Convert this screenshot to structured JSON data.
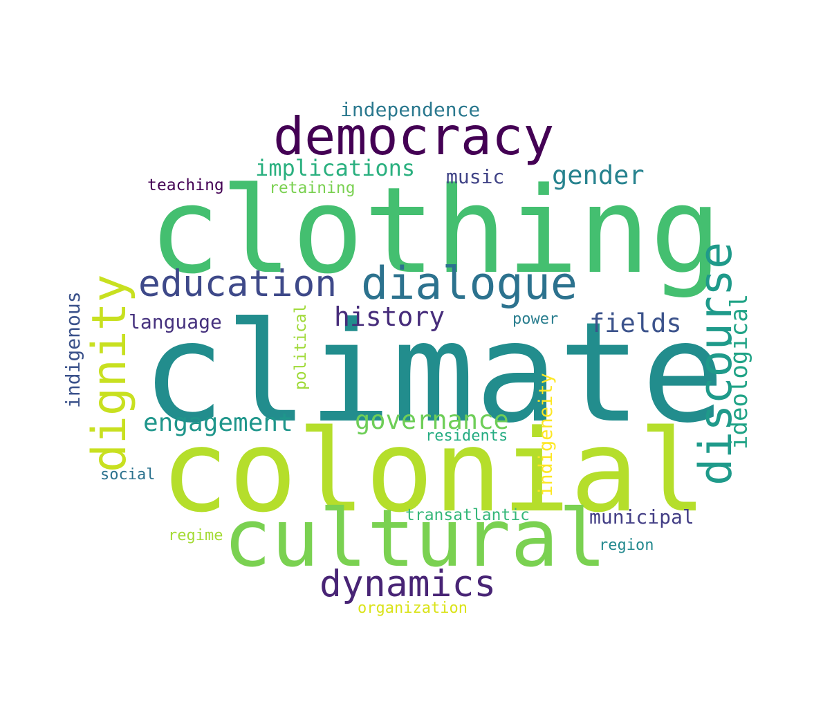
{
  "words": [
    {
      "text": "climate",
      "color": "#228d8d"
    },
    {
      "text": "clothing",
      "color": "#44bf70"
    },
    {
      "text": "colonial",
      "color": "#b5de2b"
    },
    {
      "text": "democracy",
      "color": "#440154"
    },
    {
      "text": "cultural",
      "color": "#7ad151"
    },
    {
      "text": "dialogue",
      "color": "#2c728e"
    },
    {
      "text": "discourse",
      "color": "#1f9a8a"
    },
    {
      "text": "dignity",
      "color": "#c8e020"
    },
    {
      "text": "education",
      "color": "#3e4989"
    },
    {
      "text": "dynamics",
      "color": "#482475"
    },
    {
      "text": "governance",
      "color": "#6ece58"
    },
    {
      "text": "engagement",
      "color": "#1f968b"
    },
    {
      "text": "history",
      "color": "#472d7b"
    },
    {
      "text": "implications",
      "color": "#2ab07f"
    },
    {
      "text": "gender",
      "color": "#26828e"
    },
    {
      "text": "fields",
      "color": "#3b528b"
    },
    {
      "text": "ideological",
      "color": "#20a386"
    },
    {
      "text": "independence",
      "color": "#2a788e"
    },
    {
      "text": "language",
      "color": "#46327e"
    },
    {
      "text": "indigenous",
      "color": "#3b528b"
    },
    {
      "text": "indigeneity",
      "color": "#fde725"
    },
    {
      "text": "municipal",
      "color": "#433e85"
    },
    {
      "text": "music",
      "color": "#414487"
    },
    {
      "text": "teaching",
      "color": "#440154"
    },
    {
      "text": "retaining",
      "color": "#7ad151"
    },
    {
      "text": "political",
      "color": "#a0da39"
    },
    {
      "text": "power",
      "color": "#287d8e"
    },
    {
      "text": "residents",
      "color": "#25ac82"
    },
    {
      "text": "social",
      "color": "#2c728e"
    },
    {
      "text": "transatlantic",
      "color": "#35b779"
    },
    {
      "text": "regime",
      "color": "#a5db36"
    },
    {
      "text": "region",
      "color": "#23898e"
    },
    {
      "text": "organization",
      "color": "#dae319"
    }
  ]
}
